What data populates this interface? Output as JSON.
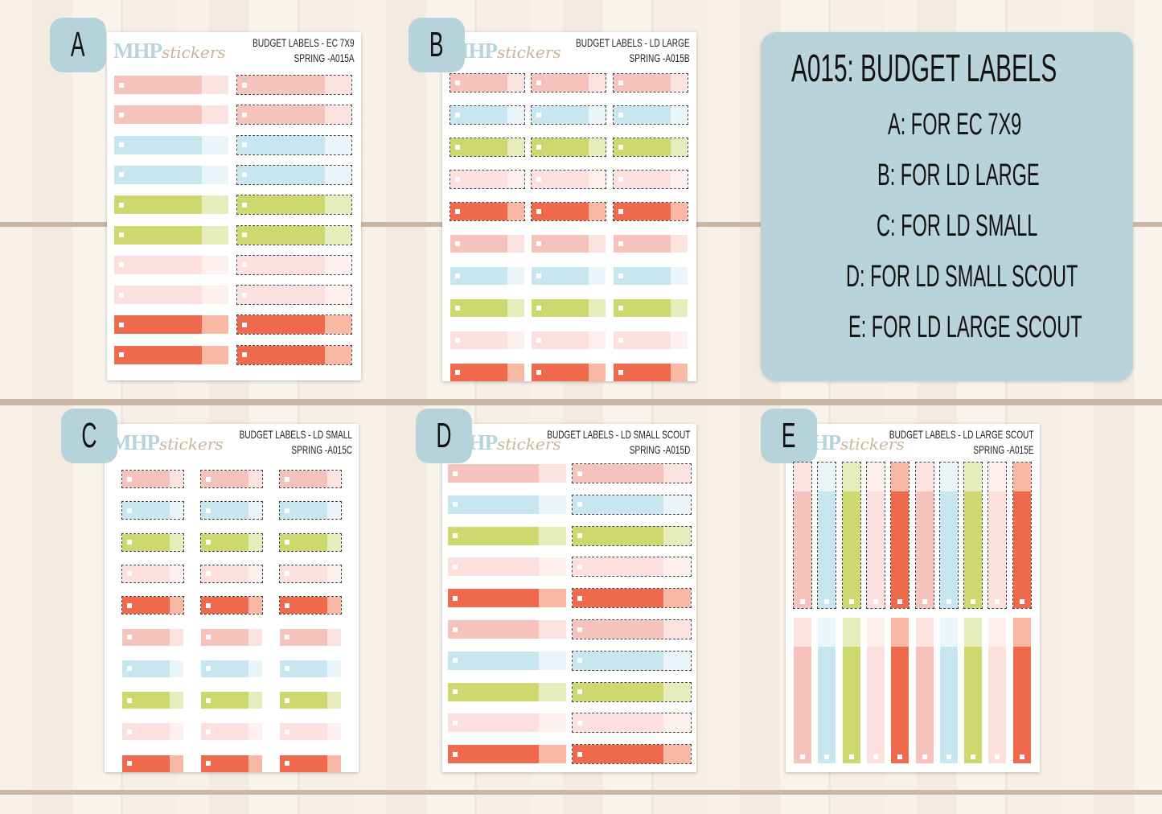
{
  "colors": {
    "pink": {
      "main": "#f5c3bc",
      "tab": "#fbe3e0"
    },
    "blue": {
      "main": "#c8e6ef",
      "tab": "#eaf5f9"
    },
    "green": {
      "main": "#cdd96e",
      "tab": "#e6edbc"
    },
    "palepink": {
      "main": "#fce0dd",
      "tab": "#fdf0ee"
    },
    "red": {
      "main": "#ef694c",
      "tab": "#f8b8a4"
    }
  },
  "panel": {
    "title": "A015: BUDGET LABELS",
    "lines": [
      "A: FOR EC 7X9",
      "B: FOR LD LARGE",
      "C: FOR LD SMALL",
      "D: FOR LD SMALL SCOUT",
      "E: FOR LD LARGE SCOUT"
    ],
    "background": "#b9d3da"
  },
  "logo": {
    "brand": "MHP",
    "script": "stickers"
  },
  "sheets": [
    {
      "letter": "A",
      "title": "BUDGET LABELS - EC 7X9",
      "code": "SPRING -A015A",
      "rows": [
        "pink",
        "pink",
        "blue",
        "blue",
        "green",
        "green",
        "palepink",
        "palepink",
        "red",
        "red"
      ]
    },
    {
      "letter": "B",
      "title": "BUDGET LABELS - LD LARGE",
      "code": "SPRING -A015B",
      "rows": [
        "pink",
        "blue",
        "green",
        "palepink",
        "red",
        "pink",
        "blue",
        "green",
        "palepink",
        "red"
      ]
    },
    {
      "letter": "C",
      "title": "BUDGET LABELS - LD SMALL",
      "code": "SPRING -A015C",
      "rows": [
        "pink",
        "blue",
        "green",
        "palepink",
        "red",
        "pink",
        "blue",
        "green",
        "palepink",
        "red"
      ]
    },
    {
      "letter": "D",
      "title": "BUDGET LABELS - LD SMALL SCOUT",
      "code": "SPRING -A015D",
      "rows": [
        "pink",
        "blue",
        "green",
        "palepink",
        "red",
        "pink",
        "blue",
        "green",
        "palepink",
        "red"
      ]
    },
    {
      "letter": "E",
      "title": "BUDGET LABELS - LD LARGE SCOUT",
      "code": "SPRING -A015E",
      "rows": [
        "pink",
        "blue",
        "green",
        "palepink",
        "red",
        "pink",
        "blue",
        "green",
        "palepink",
        "red"
      ]
    }
  ]
}
